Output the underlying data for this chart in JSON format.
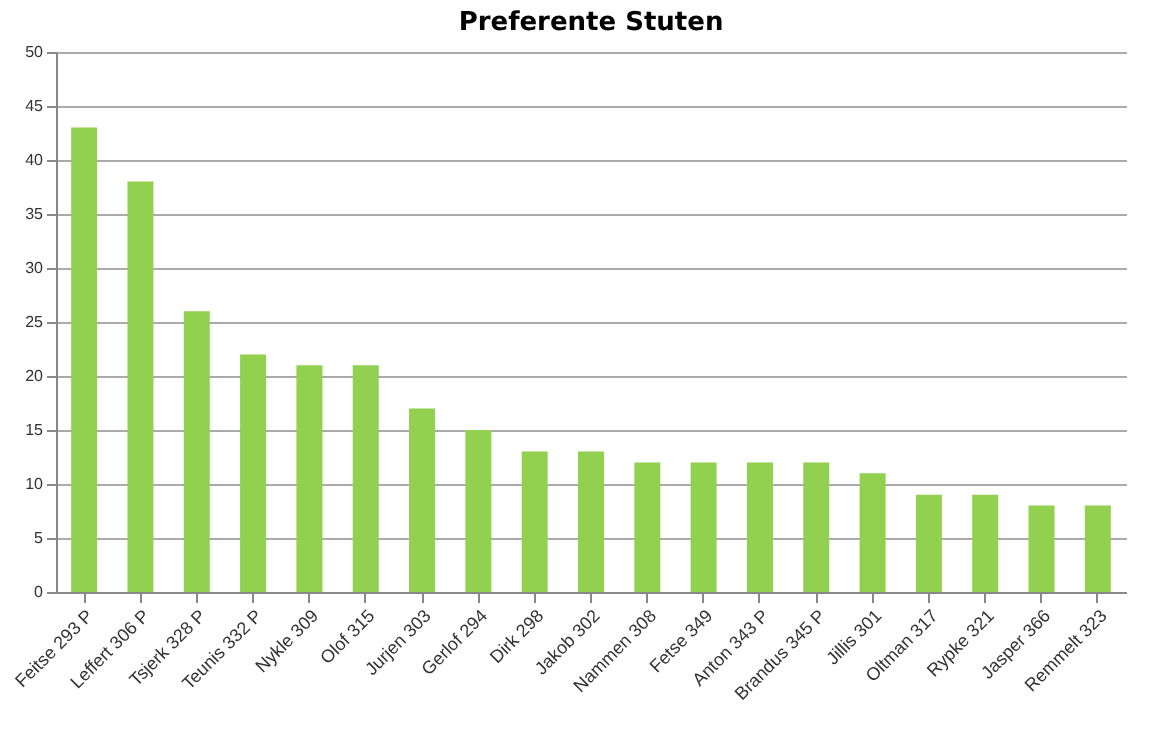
{
  "chart_data": {
    "type": "bar",
    "title": "Preferente Stuten",
    "categories": [
      "Feitse 293 P",
      "Leffert 306 P",
      "Tsjerk 328 P",
      "Teunis 332 P",
      "Nykle 309",
      "Olof 315",
      "Jurjen 303",
      "Gerlof 294",
      "Dirk 298",
      "Jakob 302",
      "Nammen 308",
      "Fetse 349",
      "Anton 343 P",
      "Brandus 345 P",
      "Jillis 301",
      "Oltman 317",
      "Rypke 321",
      "Jasper 366",
      "Remmelt 323"
    ],
    "values": [
      43,
      38,
      26,
      22,
      21,
      21,
      17,
      15,
      13,
      13,
      12,
      12,
      12,
      12,
      11,
      9,
      9,
      8,
      8
    ],
    "color": "#92d050",
    "ylim": [
      0,
      50
    ],
    "yticks": [
      0,
      5,
      10,
      15,
      20,
      25,
      30,
      35,
      40,
      45,
      50
    ],
    "grid": "y"
  }
}
